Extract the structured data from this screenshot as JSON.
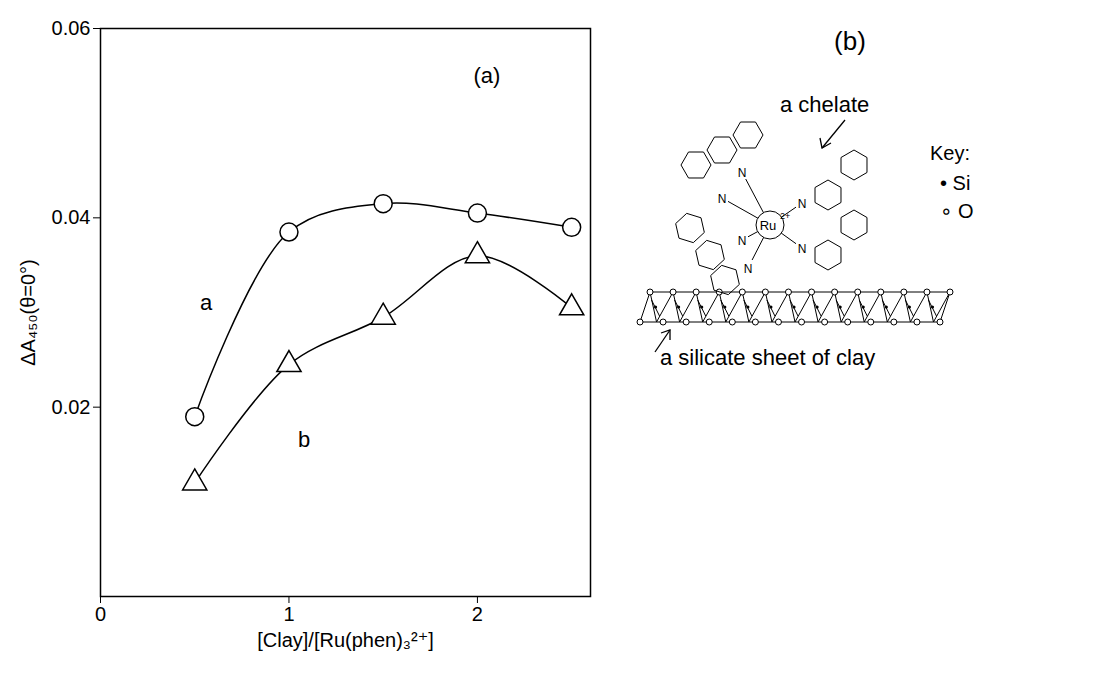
{
  "chart_data": {
    "type": "scatter",
    "x_label": "[Clay]/[Ru(phen)₃²⁺]",
    "y_label": "ΔA₄₅₀(θ=0°)",
    "xlim": [
      0,
      2.6
    ],
    "xticks": [
      0,
      1,
      2
    ],
    "ylim": [
      0,
      0.06
    ],
    "yticks": [
      0.02,
      0.04,
      0.06
    ],
    "grid": false,
    "series": [
      {
        "name": "a",
        "color": "#000000",
        "marker": "circle",
        "type": "line",
        "x": [
          0.5,
          1,
          1.5,
          2,
          2.5
        ],
        "values": [
          0.019,
          0.0385,
          0.0415,
          0.0405,
          0.039
        ]
      },
      {
        "name": "b",
        "color": "#000000",
        "marker": "triangle",
        "type": "line",
        "x": [
          0.5,
          1,
          1.5,
          2,
          2.5
        ],
        "values": [
          0.012,
          0.0245,
          0.0295,
          0.036,
          0.0305
        ]
      }
    ],
    "annotations": [
      {
        "text": "(a)",
        "x": 2.05,
        "y": 0.055
      },
      {
        "text": "a",
        "x": 0.56,
        "y": 0.031
      },
      {
        "text": "b",
        "x": 1.08,
        "y": 0.0165
      }
    ]
  },
  "diagram": {
    "label": "(b)",
    "chelate_label": "a chelate",
    "metal_label": "Ru",
    "metal_charge": "2+",
    "atom_label": "N",
    "key_title": "Key:",
    "key": [
      {
        "symbol": "•",
        "label": "Si"
      },
      {
        "symbol": "∘",
        "label": "O"
      }
    ],
    "sheet_label": "a silicate sheet of clay"
  }
}
